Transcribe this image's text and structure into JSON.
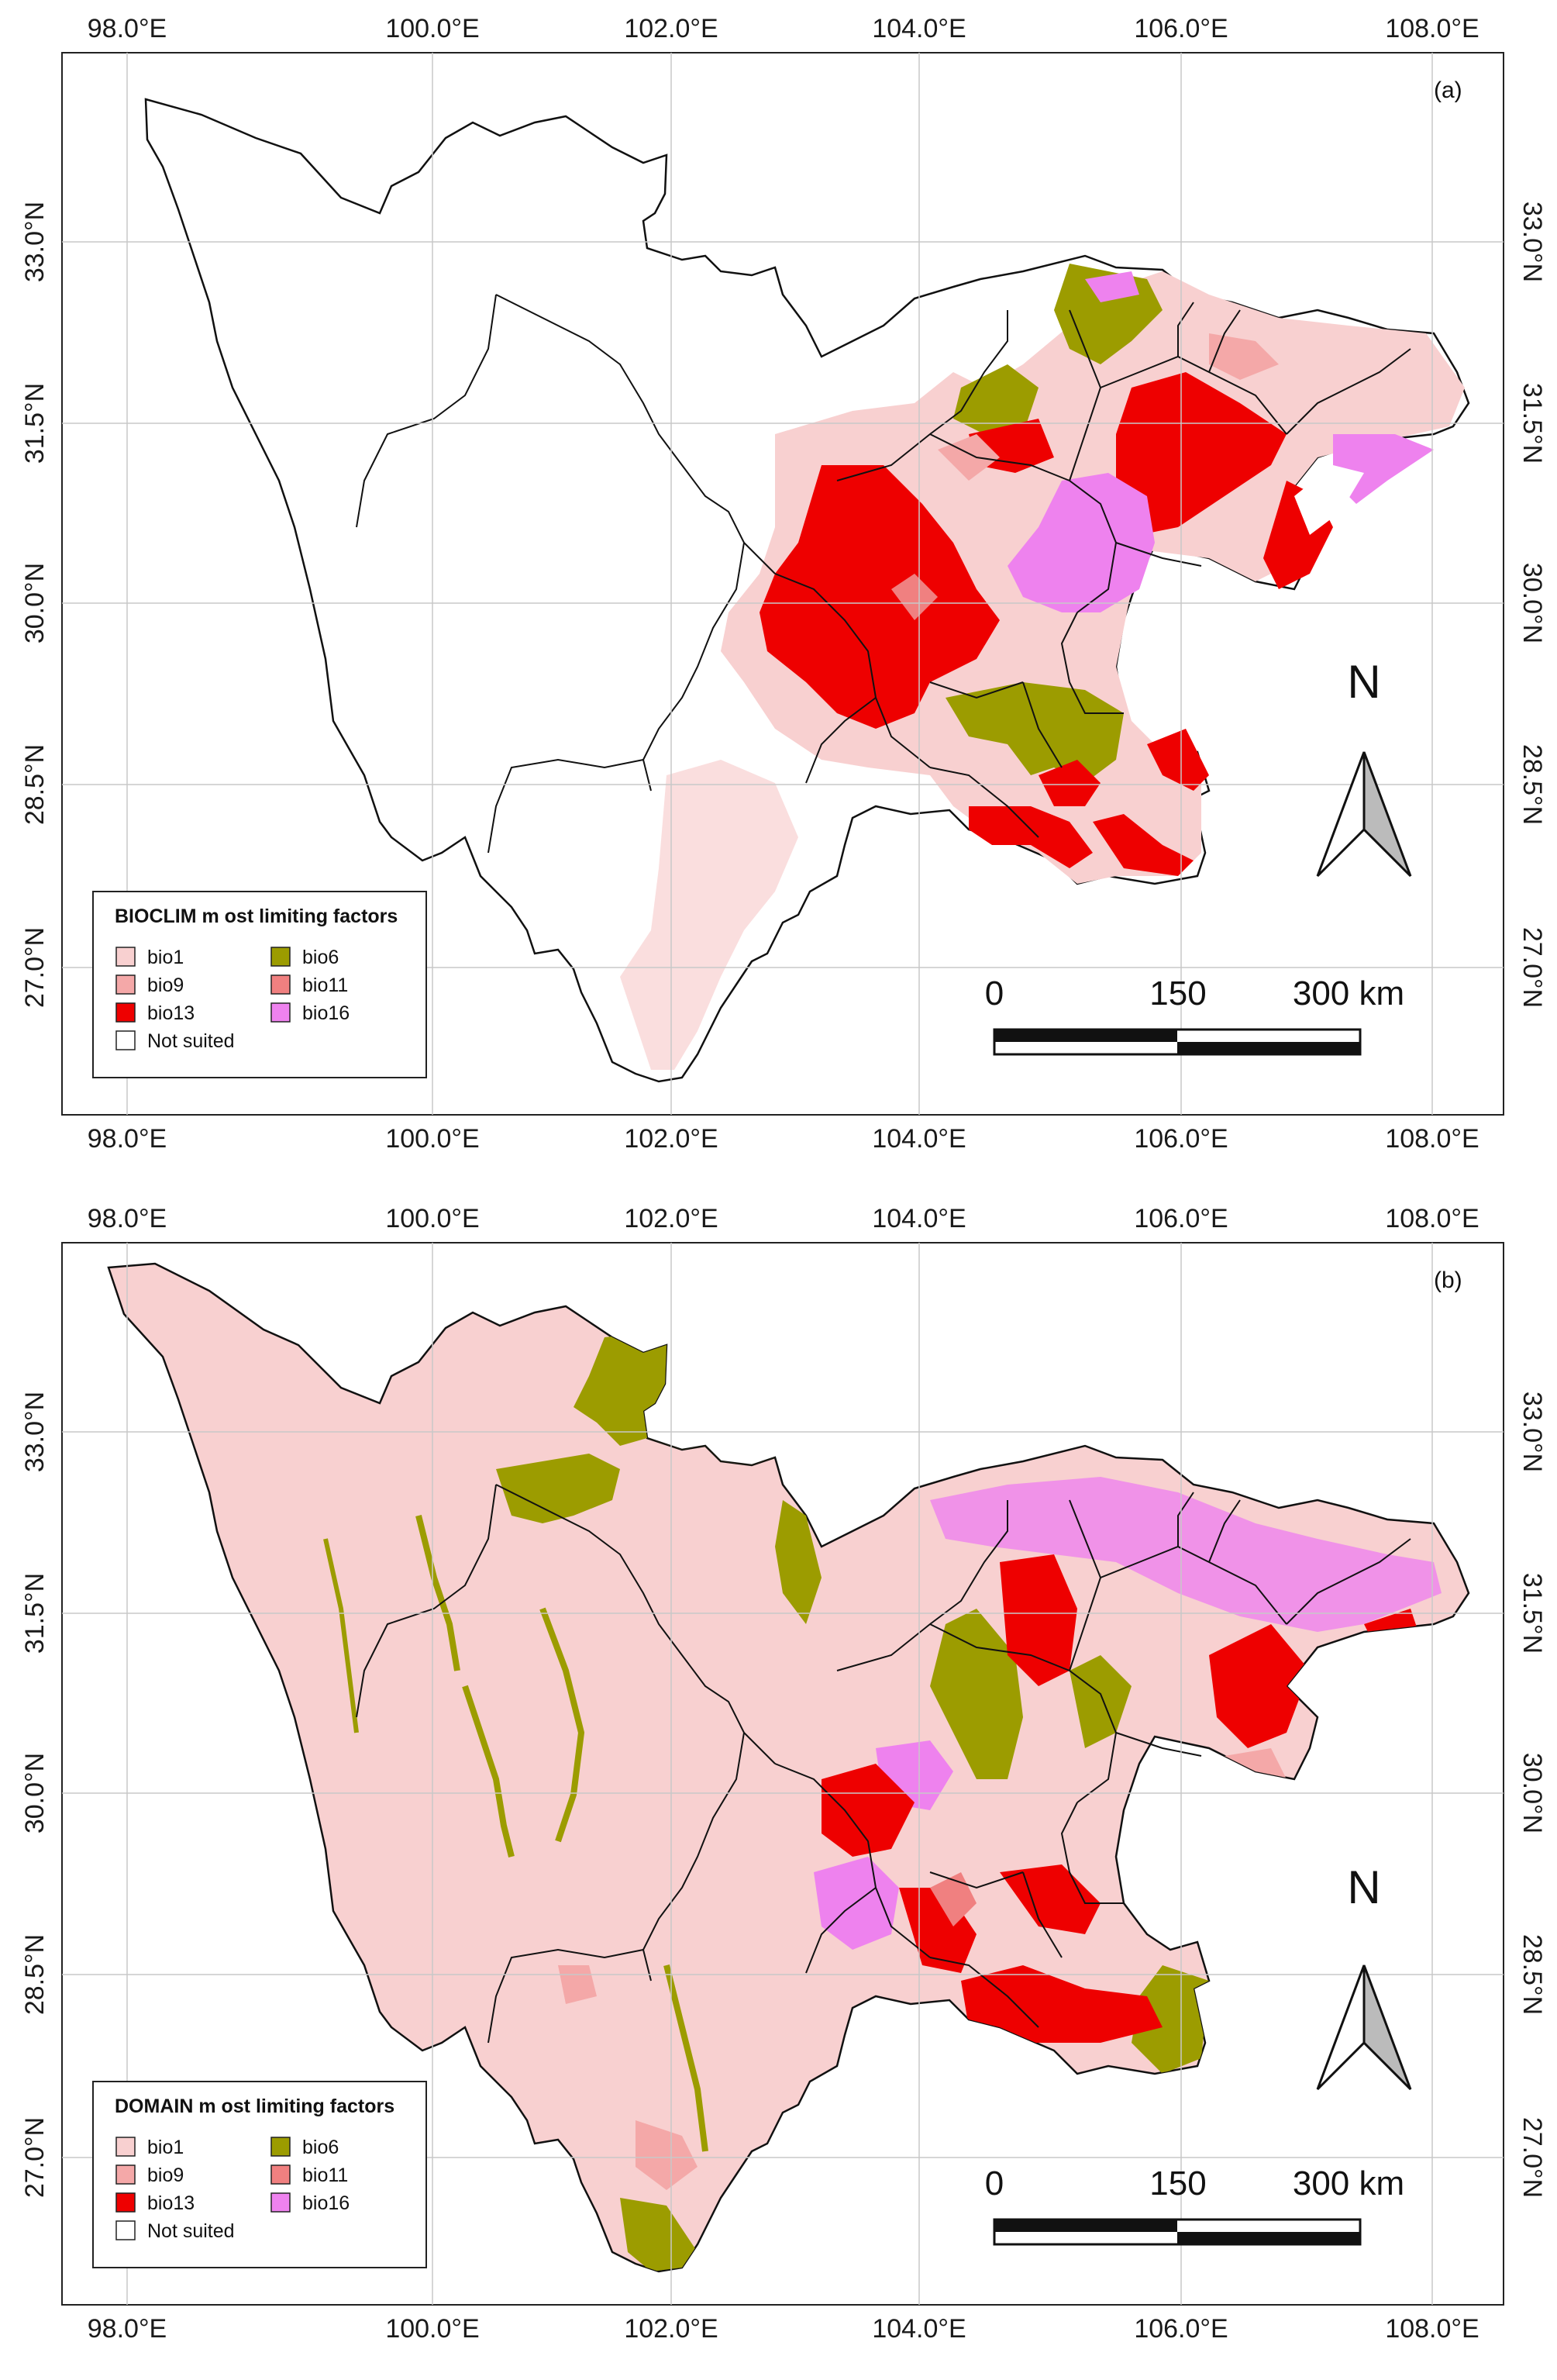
{
  "figure": {
    "panels": [
      {
        "id": "a",
        "panel_label": "(a)",
        "legend_title": "BIOCLIM m ost limiting factors",
        "compass_label": "N",
        "scale_labels": [
          "0",
          "150",
          "300 km"
        ],
        "x_ticks": [
          "98.0°E",
          "100.0°E",
          "102.0°E",
          "104.0°E",
          "106.0°E",
          "108.0°E"
        ],
        "y_ticks": [
          "33.0°N",
          "31.5°N",
          "30.0°N",
          "28.5°N",
          "27.0°N"
        ]
      },
      {
        "id": "b",
        "panel_label": "(b)",
        "legend_title": "DOMAIN m ost limiting factors",
        "compass_label": "N",
        "scale_labels": [
          "0",
          "150",
          "300 km"
        ],
        "x_ticks": [
          "98.0°E",
          "100.0°E",
          "102.0°E",
          "104.0°E",
          "106.0°E",
          "108.0°E"
        ],
        "y_ticks": [
          "33.0°N",
          "31.5°N",
          "30.0°N",
          "28.5°N",
          "27.0°N"
        ]
      }
    ],
    "legend_items": [
      {
        "label": "bio1",
        "color": "#f8d0d0"
      },
      {
        "label": "bio9",
        "color": "#f4a8a8"
      },
      {
        "label": "bio13",
        "color": "#ee0000"
      },
      {
        "label": "Not suited",
        "color": "#ffffff"
      },
      {
        "label": "bio6",
        "color": "#9c9c00"
      },
      {
        "label": "bio11",
        "color": "#f08080"
      },
      {
        "label": "bio16",
        "color": "#ee82ee"
      }
    ],
    "colors": {
      "bio1": "#f8d0d0",
      "bio9": "#f4a8a8",
      "bio13": "#ee0000",
      "bio6": "#9c9c00",
      "bio11": "#f08080",
      "bio16": "#ee82ee",
      "not_suited": "#ffffff",
      "grid": "#c8c8c8",
      "boundary": "#111111"
    }
  }
}
